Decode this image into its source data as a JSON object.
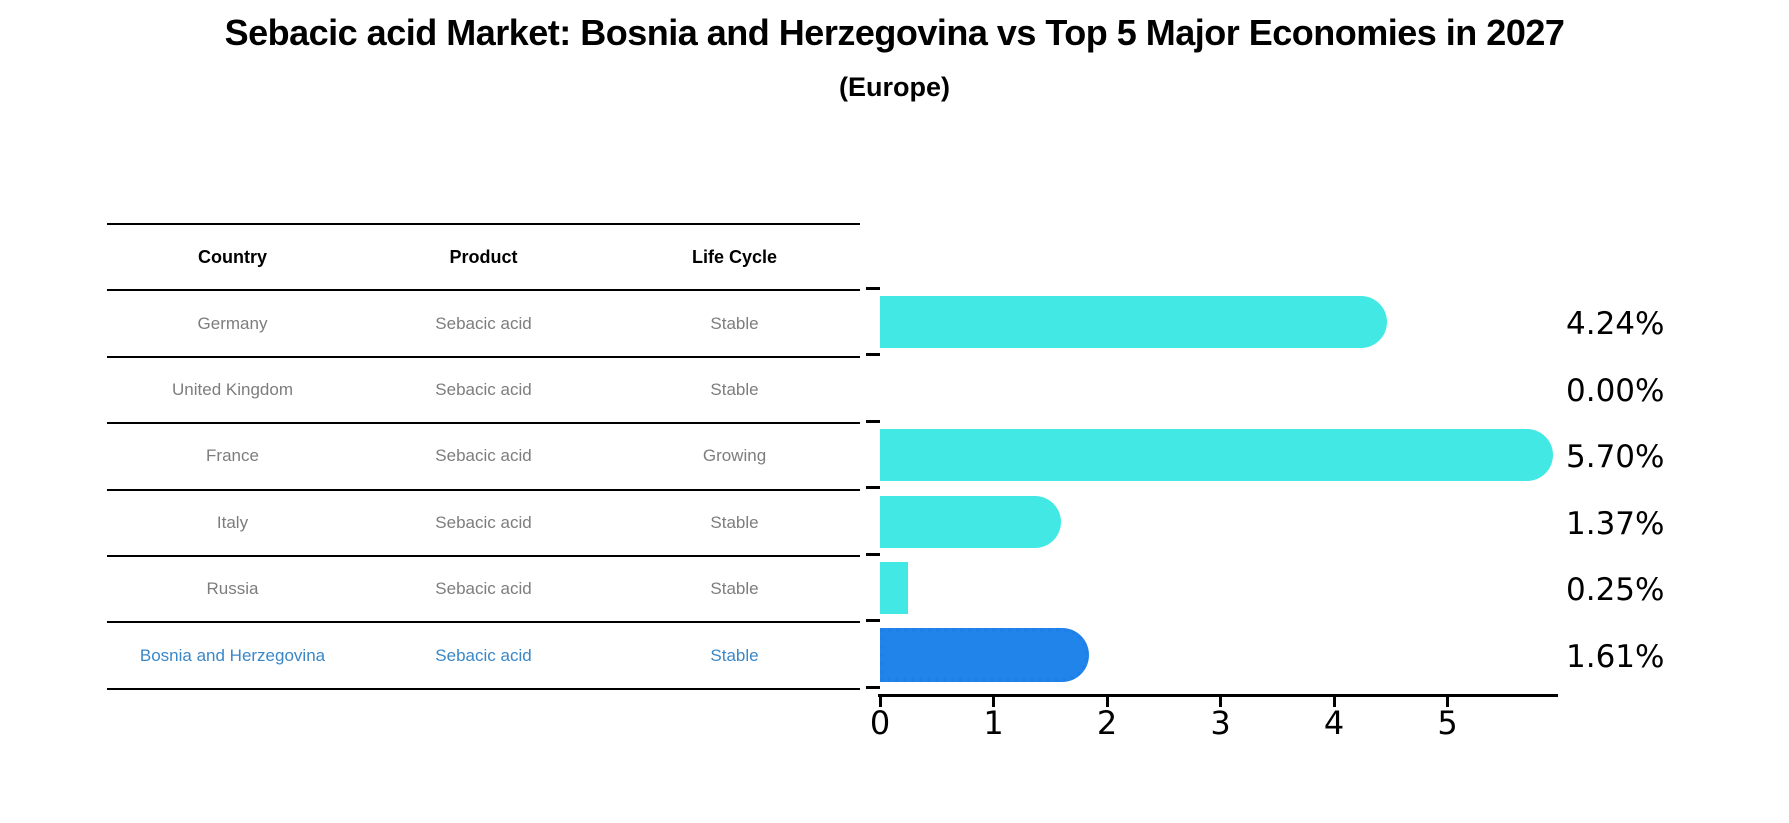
{
  "header": {
    "title": "Sebacic acid Market: Bosnia and Herzegovina vs Top 5 Major Economies in 2027",
    "subtitle": "(Europe)"
  },
  "table": {
    "columns": [
      "Country",
      "Product",
      "Life Cycle"
    ],
    "rows": [
      {
        "country": "Germany",
        "product": "Sebacic acid",
        "life_cycle": "Stable",
        "highlight": false
      },
      {
        "country": "United Kingdom",
        "product": "Sebacic acid",
        "life_cycle": "Stable",
        "highlight": false
      },
      {
        "country": "France",
        "product": "Sebacic acid",
        "life_cycle": "Growing",
        "highlight": false
      },
      {
        "country": "Italy",
        "product": "Sebacic acid",
        "life_cycle": "Stable",
        "highlight": false
      },
      {
        "country": "Russia",
        "product": "Sebacic acid",
        "life_cycle": "Stable",
        "highlight": false
      },
      {
        "country": "Bosnia and Herzegovina",
        "product": "Sebacic acid",
        "life_cycle": "Stable",
        "highlight": true
      }
    ]
  },
  "chart_data": {
    "type": "bar",
    "orientation": "horizontal",
    "title": "Sebacic acid Market: Bosnia and Herzegovina vs Top 5 Major Economies in 2027 (Europe)",
    "categories": [
      "Germany",
      "United Kingdom",
      "France",
      "Italy",
      "Russia",
      "Bosnia and Herzegovina"
    ],
    "values": [
      4.24,
      0.0,
      5.7,
      1.37,
      0.25,
      1.61
    ],
    "value_labels": [
      "4.24%",
      "0.00%",
      "5.70%",
      "1.37%",
      "0.25%",
      "1.61%"
    ],
    "unit": "percent",
    "xticks": [
      0,
      1,
      2,
      3,
      4,
      5
    ],
    "xlim": [
      0,
      6
    ],
    "grid": false,
    "legend": "none",
    "bar_color": "#42e8e4",
    "highlight_index": 5,
    "highlight_color": "#2084eb",
    "highlight_border_color": "#1f7fe8",
    "text_color": "#000000",
    "row_text_color": "#7d7d7d",
    "highlight_text_color": "#3a87c8"
  }
}
